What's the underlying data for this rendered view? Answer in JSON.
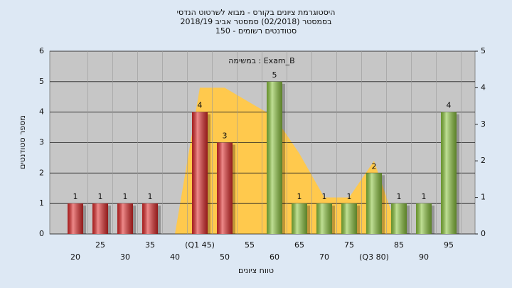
{
  "chart_data": {
    "type": "bar",
    "title": [
      "היסטוגרמת ציונים בקורס - מבוא לשרטוט הנדסי",
      "בסמסטר (02/2018)  סמסטר אביב 2018/19",
      "סטודנטים רשומים - 150"
    ],
    "annotation": "במשימה : Exam_B",
    "y_label": "מספר סטודנטים",
    "x_label": "טווח ציונים",
    "categories": [
      "20",
      "25",
      "30",
      "35",
      "40",
      "(Q1 45)",
      "50",
      "55",
      "60",
      "65",
      "70",
      "75",
      "(Q3 80)",
      "85",
      "90",
      "95"
    ],
    "values": [
      1,
      1,
      1,
      1,
      0,
      4,
      3,
      0,
      5,
      1,
      1,
      1,
      2,
      1,
      1,
      4
    ],
    "bar_colors": [
      "#e02a2a",
      "#e02a2a",
      "#e02a2a",
      "#e02a2a",
      "#e02a2a",
      "#e02a2a",
      "#e02a2a",
      "#e02a2a",
      "#8cc63e",
      "#8cc63e",
      "#8cc63e",
      "#8cc63e",
      "#8cc63e",
      "#8cc63e",
      "#8cc63e",
      "#8cc63e"
    ],
    "area": {
      "color": "#ffc94d",
      "axis": "y2",
      "values": [
        null,
        null,
        null,
        null,
        0,
        4,
        4,
        3.6,
        3.2,
        2.2,
        1,
        1,
        2,
        0,
        null,
        null
      ]
    },
    "ylim": [
      0,
      6
    ],
    "yticks": [
      0,
      1,
      2,
      3,
      4,
      5,
      6
    ],
    "y2lim": [
      0,
      5
    ],
    "y2ticks": [
      0,
      1,
      2,
      3,
      4,
      5
    ],
    "grid": true
  }
}
